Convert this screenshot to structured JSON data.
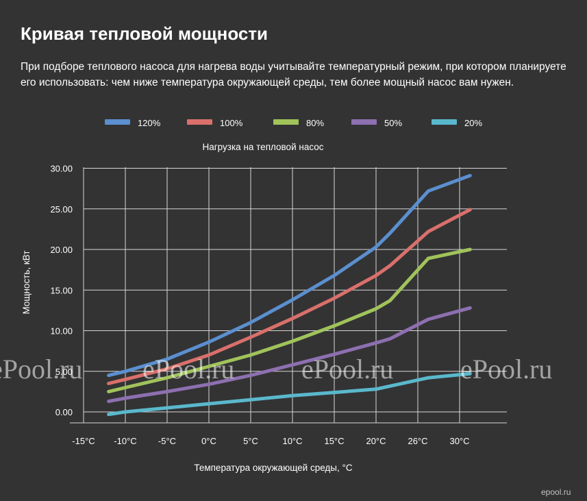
{
  "page": {
    "title": "Кривая тепловой мощности",
    "description": "При подборе теплового насоса для нагрева воды учитывайте температурный режим, при котором планируете его использовать: чем ниже температура окружающей среды, тем более мощный насос вам нужен."
  },
  "watermark": {
    "text": "ePool.ru",
    "corner": "epool.ru"
  },
  "chart_data": {
    "type": "line",
    "title": "Нагрузка на тепловой насос",
    "xlabel": "Температура окружающей среды, °C",
    "ylabel": "Мощность, кВт",
    "categories": [
      "-15°C",
      "-10°C",
      "-5°C",
      "0°C",
      "5°C",
      "10°C",
      "15°C",
      "20°C",
      "26°C",
      "30°C"
    ],
    "y_ticks": [
      "0.00",
      "5.00",
      "10.00",
      "15.00",
      "20.00",
      "25.00",
      "30.00"
    ],
    "ylim": [
      -1,
      30
    ],
    "grid": true,
    "legend_position": "top",
    "series": [
      {
        "name": "120%",
        "color": "#5b8fcf",
        "x": [
          -12,
          -10,
          -5,
          0,
          5,
          10,
          15,
          20,
          22,
          27,
          31
        ],
        "values": [
          4.5,
          5.0,
          6.5,
          8.6,
          11.0,
          13.8,
          16.8,
          20.3,
          22.0,
          27.2,
          29.1
        ]
      },
      {
        "name": "100%",
        "color": "#d9706b",
        "x": [
          -12,
          -10,
          -5,
          0,
          5,
          10,
          15,
          20,
          22,
          27,
          31
        ],
        "values": [
          3.5,
          4.0,
          5.3,
          7.0,
          9.2,
          11.5,
          14.0,
          16.8,
          18.0,
          22.2,
          24.9
        ]
      },
      {
        "name": "80%",
        "color": "#a0c35a",
        "x": [
          -12,
          -10,
          -5,
          0,
          5,
          10,
          15,
          20,
          22,
          27,
          31
        ],
        "values": [
          2.5,
          3.0,
          4.2,
          5.6,
          7.0,
          8.7,
          10.6,
          12.7,
          13.7,
          18.9,
          20.0
        ]
      },
      {
        "name": "50%",
        "color": "#8d70b0",
        "x": [
          -12,
          -10,
          -5,
          0,
          5,
          10,
          15,
          20,
          22,
          27,
          31
        ],
        "values": [
          1.3,
          1.7,
          2.5,
          3.4,
          4.5,
          5.8,
          7.1,
          8.5,
          9.0,
          11.4,
          12.8
        ]
      },
      {
        "name": "20%",
        "color": "#5ab8cc",
        "x": [
          -12,
          -10,
          -5,
          0,
          5,
          10,
          15,
          20,
          27,
          31
        ],
        "values": [
          -0.3,
          0.0,
          0.5,
          1.0,
          1.5,
          2.0,
          2.4,
          2.8,
          4.2,
          4.7
        ]
      }
    ]
  }
}
